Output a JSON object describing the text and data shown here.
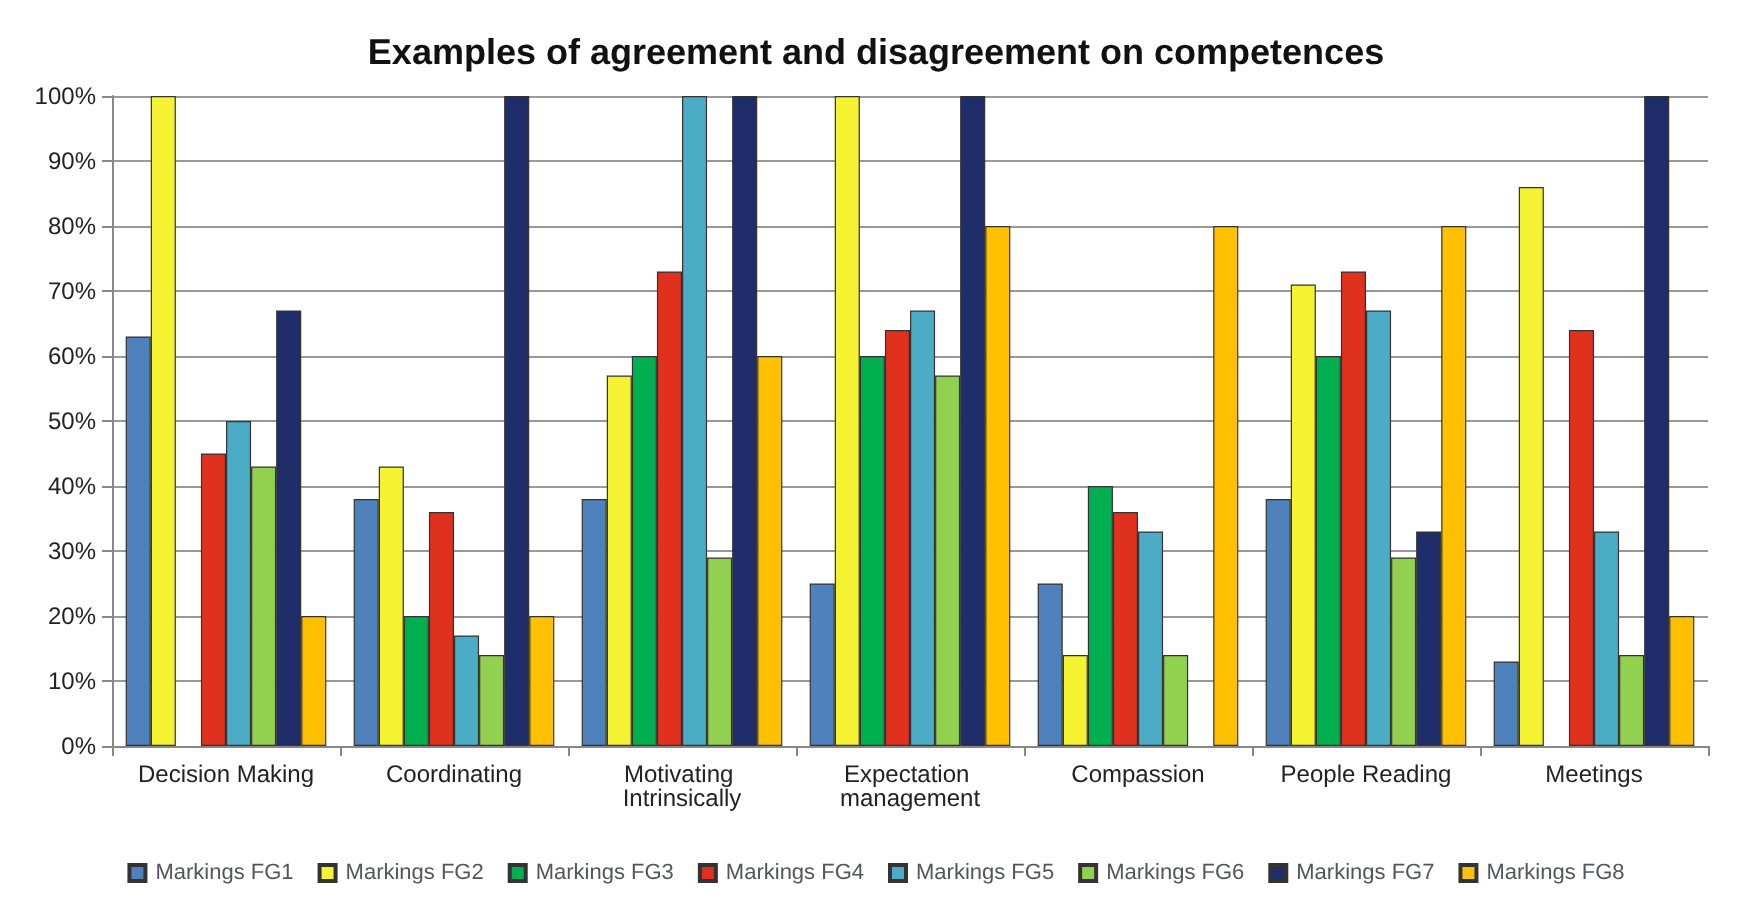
{
  "chart_data": {
    "type": "bar",
    "title": "Examples of agreement and disagreement on competences",
    "categories": [
      "Decision Making",
      "Coordinating",
      "Motivating Intrinsically",
      "Expectation management",
      "Compassion",
      "People Reading",
      "Meetings"
    ],
    "series": [
      {
        "name": "Markings FG1",
        "color": "#4f81bd",
        "values": [
          63,
          38,
          38,
          25,
          25,
          38,
          13
        ]
      },
      {
        "name": "Markings FG2",
        "color": "#f5f232",
        "values": [
          100,
          43,
          57,
          100,
          14,
          71,
          86
        ]
      },
      {
        "name": "Markings FG3",
        "color": "#00b050",
        "values": [
          0,
          20,
          60,
          60,
          40,
          60,
          0
        ]
      },
      {
        "name": "Markings FG4",
        "color": "#e0301e",
        "values": [
          45,
          36,
          73,
          64,
          36,
          73,
          64
        ]
      },
      {
        "name": "Markings FG5",
        "color": "#4bacc6",
        "values": [
          50,
          17,
          100,
          67,
          33,
          67,
          33
        ]
      },
      {
        "name": "Markings FG6",
        "color": "#92d050",
        "values": [
          43,
          14,
          29,
          57,
          14,
          29,
          14
        ]
      },
      {
        "name": "Markings FG7",
        "color": "#1f2d6b",
        "values": [
          67,
          100,
          100,
          100,
          0,
          33,
          100
        ]
      },
      {
        "name": "Markings FG8",
        "color": "#ffc000",
        "values": [
          20,
          20,
          60,
          80,
          80,
          80,
          20
        ]
      }
    ],
    "ylim": [
      0,
      100
    ],
    "yticks": [
      {
        "value": 0,
        "label": "0%"
      },
      {
        "value": 10,
        "label": "10%"
      },
      {
        "value": 20,
        "label": "20%"
      },
      {
        "value": 30,
        "label": "30%"
      },
      {
        "value": 40,
        "label": "40%"
      },
      {
        "value": 50,
        "label": "50%"
      },
      {
        "value": 60,
        "label": "60%"
      },
      {
        "value": 70,
        "label": "70%"
      },
      {
        "value": 80,
        "label": "80%"
      },
      {
        "value": 90,
        "label": "90%"
      },
      {
        "value": 100,
        "label": "100%"
      }
    ],
    "grid": "y",
    "legend": "bottom"
  }
}
